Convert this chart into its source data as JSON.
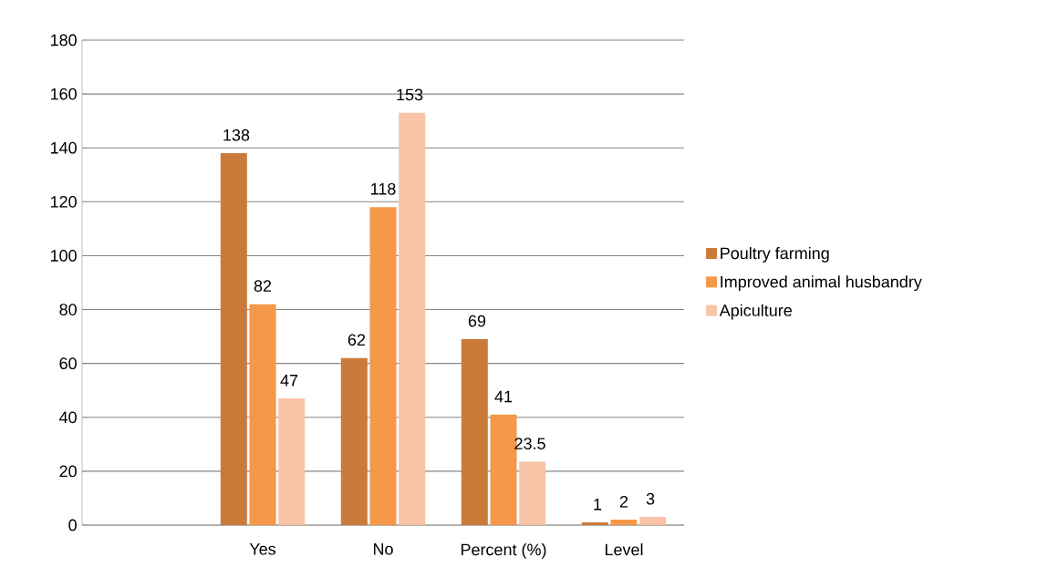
{
  "chart_data": {
    "type": "bar",
    "categories": [
      null,
      "Yes",
      "No",
      "Percent (%)",
      "Level"
    ],
    "series": [
      {
        "name": "Poultry farming",
        "color": "#cb7b39",
        "values": [
          null,
          138,
          62,
          69,
          1
        ]
      },
      {
        "name": "Improved animal husbandry",
        "color": "#f59849",
        "values": [
          null,
          82,
          118,
          41,
          2
        ]
      },
      {
        "name": "Apiculture",
        "color": "#f8c3a6",
        "values": [
          null,
          47,
          153,
          23.5,
          3
        ]
      }
    ],
    "ylim": [
      0,
      180
    ],
    "yticks": [
      0,
      20,
      40,
      60,
      80,
      100,
      120,
      140,
      160,
      180
    ],
    "grid": "y",
    "legend": "right",
    "data_labels": true
  }
}
